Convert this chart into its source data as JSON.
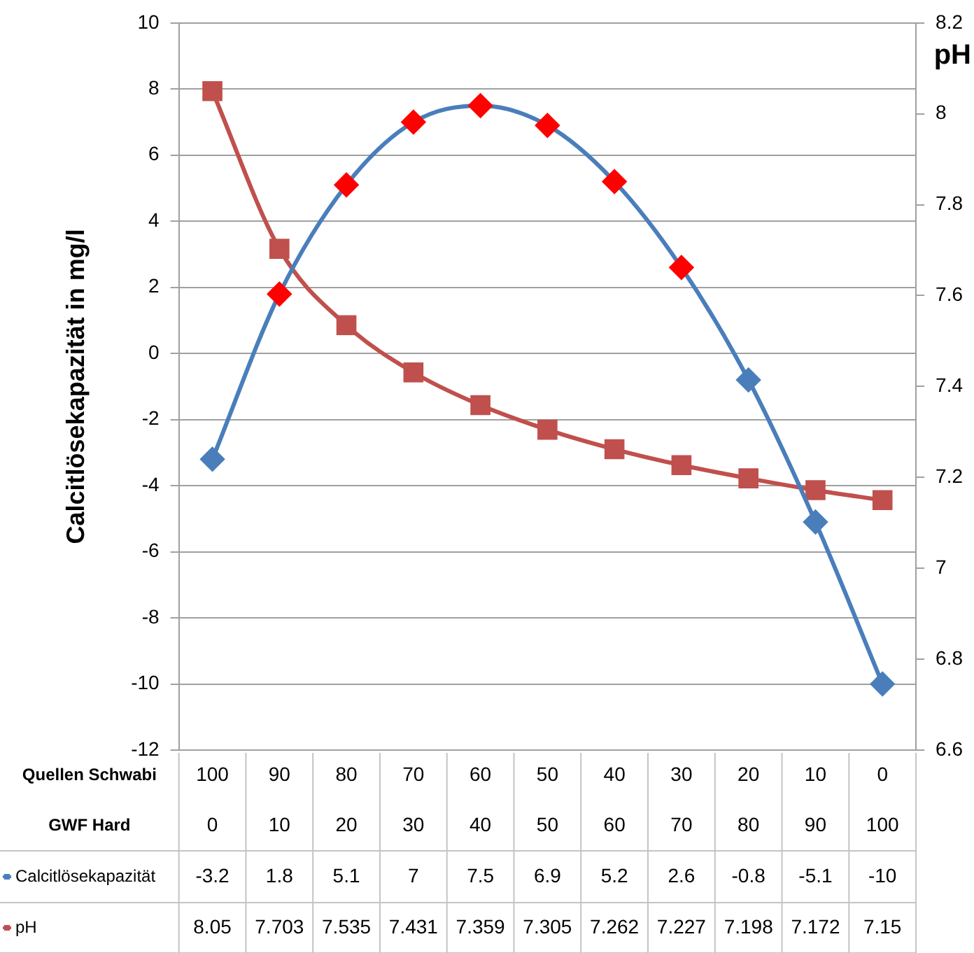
{
  "chart_data": {
    "type": "line",
    "ylabel": "Calcitlösekapazität in mg/l",
    "y2label": "pH",
    "xlabel": "Quellen Schwabi\nGWF Hard",
    "categories": [
      "100\n0",
      "90\n10",
      "80\n20",
      "70\n30",
      "60\n40",
      "50\n50",
      "40\n60",
      "30\n70",
      "20\n80",
      "10\n90",
      "0\n100"
    ],
    "series": [
      {
        "name": "Calcitlösekapazität",
        "color": "#4a7ebb",
        "colors": [
          "#4a7ebb",
          "#ff0000",
          "#ff0000",
          "#ff0000",
          "#ff0000",
          "#ff0000",
          "#ff0000",
          "#ff0000",
          "#4a7ebb",
          "#4a7ebb",
          "#4a7ebb"
        ],
        "marker": "diamond",
        "values": [
          -3.2,
          1.8,
          5.1,
          7,
          7.5,
          6.9,
          5.2,
          2.6,
          -0.8,
          -5.1,
          -10
        ]
      },
      {
        "name": "pH",
        "color": "#c0504d",
        "marker": "square",
        "axis": "y2",
        "values": [
          8.05,
          7.703,
          7.535,
          7.431,
          7.359,
          7.305,
          7.262,
          7.227,
          7.198,
          7.172,
          7.15
        ]
      }
    ],
    "ylim": [
      -12,
      10
    ],
    "yticks": [
      -12,
      -10,
      -8,
      -6,
      -4,
      -2,
      0,
      2,
      4,
      6,
      8,
      10
    ],
    "y2lim": [
      6.6,
      8.2
    ],
    "y2ticks": [
      6.6,
      6.8,
      7,
      7.2,
      7.4,
      7.6,
      7.8,
      8,
      8.2
    ],
    "grid": "y",
    "legend": "bottom",
    "data_labels": true
  }
}
